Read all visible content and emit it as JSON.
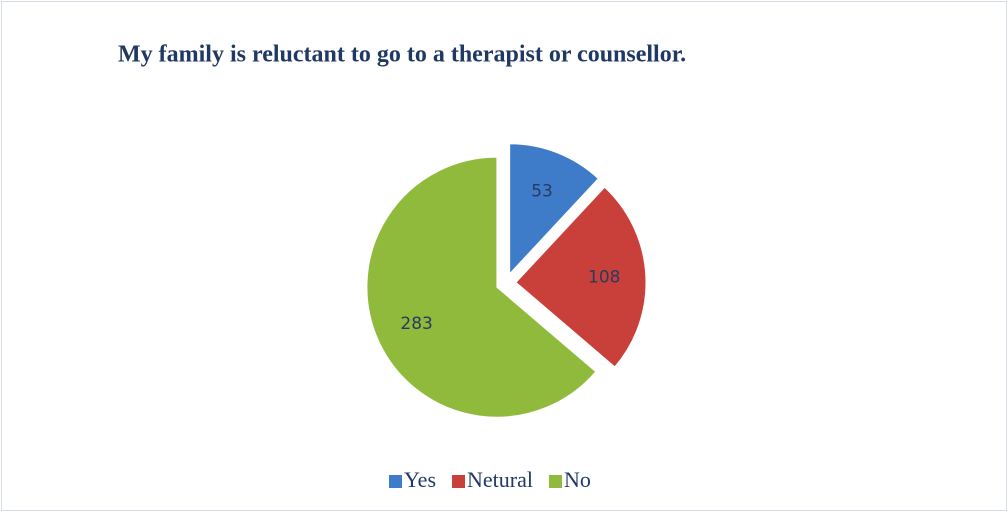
{
  "chart_data": {
    "type": "pie",
    "title": "My family is reluctant to go to a therapist or counsellor.",
    "categories": [
      "Yes",
      "Netural",
      "No"
    ],
    "values": [
      53,
      108,
      283
    ],
    "colors": [
      "#3e7bc8",
      "#c9403b",
      "#8fba3c"
    ],
    "legend": "bottom"
  }
}
